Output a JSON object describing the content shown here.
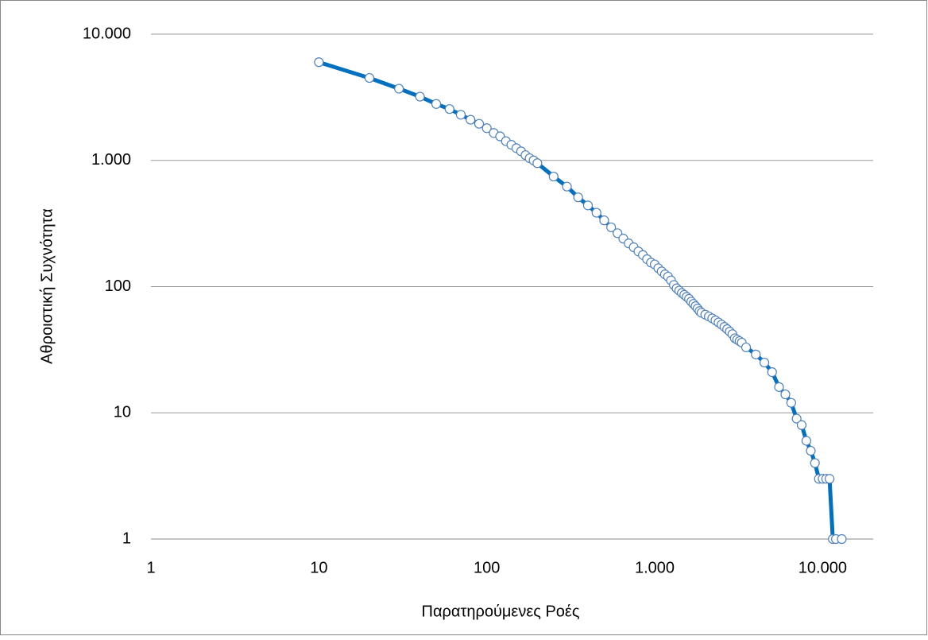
{
  "chart_data": {
    "type": "line",
    "x_label": "Παρατηρούμενες Ροές",
    "y_label": "Αθροιστική Συχνότητα",
    "x": [
      10,
      20,
      30,
      40,
      50,
      60,
      70,
      80,
      90,
      100,
      110,
      120,
      130,
      140,
      150,
      160,
      170,
      180,
      190,
      200,
      250,
      300,
      350,
      400,
      450,
      500,
      550,
      600,
      650,
      700,
      750,
      800,
      850,
      900,
      950,
      1000,
      1050,
      1100,
      1150,
      1200,
      1250,
      1300,
      1350,
      1400,
      1450,
      1500,
      1550,
      1600,
      1650,
      1700,
      1750,
      1800,
      1850,
      1900,
      2000,
      2100,
      2200,
      2300,
      2400,
      2500,
      2600,
      2700,
      2800,
      2900,
      3000,
      3100,
      3200,
      3300,
      3500,
      4000,
      4500,
      5000,
      5500,
      6000,
      6500,
      7000,
      7500,
      8000,
      8500,
      9000,
      9500,
      10000,
      10500,
      11000,
      11500,
      12000,
      13000
    ],
    "values": [
      6000,
      4500,
      3700,
      3200,
      2800,
      2550,
      2300,
      2100,
      1950,
      1800,
      1650,
      1550,
      1420,
      1330,
      1250,
      1180,
      1100,
      1040,
      1000,
      950,
      745,
      620,
      510,
      440,
      385,
      335,
      295,
      265,
      240,
      220,
      205,
      190,
      178,
      165,
      155,
      150,
      140,
      132,
      125,
      120,
      112,
      103,
      97,
      93,
      89,
      86,
      83,
      80,
      76,
      73,
      70,
      67,
      64,
      62,
      60,
      58,
      56,
      54,
      52,
      50,
      48,
      46,
      44,
      42,
      39,
      38,
      37,
      36,
      33,
      29,
      25,
      21,
      16,
      14,
      12,
      9,
      8,
      6,
      5,
      4,
      3,
      3,
      3,
      3,
      1,
      1,
      1
    ],
    "color": "#0070c0",
    "marker_color": "#4f81bd",
    "xlog": true,
    "ylog": true,
    "xlim": [
      1,
      20000
    ],
    "ylim": [
      1,
      10000
    ],
    "xticks": [
      1,
      10,
      100,
      {
        "value": 1000,
        "label": "1.000"
      },
      {
        "value": 10000,
        "label": "10.000"
      }
    ],
    "yticks": [
      1,
      10,
      100,
      {
        "value": 1000,
        "label": "1.000"
      },
      {
        "value": 10000,
        "label": "10.000"
      }
    ],
    "ygrid": true
  }
}
